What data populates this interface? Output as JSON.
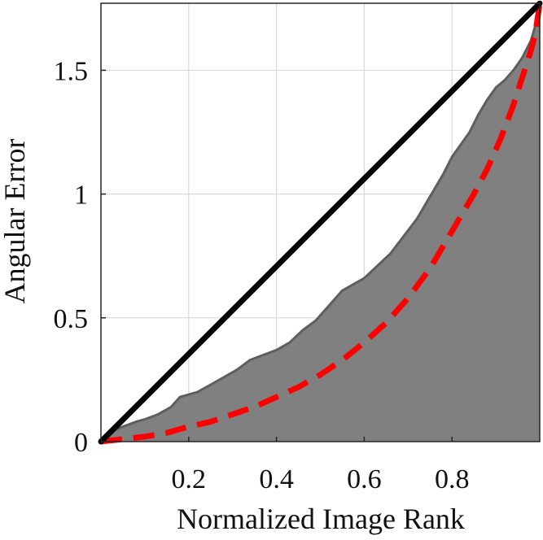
{
  "chart_data": {
    "type": "area",
    "title": "",
    "xlabel": "Normalized Image Rank",
    "ylabel": "Angular Error",
    "xlim": [
      0,
      1
    ],
    "ylim": [
      0,
      1.7708
    ],
    "xticks": [
      0.2,
      0.4,
      0.6,
      0.8
    ],
    "xtick_labels": [
      "0.2",
      "0.4",
      "0.6",
      "0.8"
    ],
    "yticks": [
      0,
      0.5,
      1,
      1.5
    ],
    "ytick_labels": [
      "0",
      "0.5",
      "1",
      "1.5"
    ],
    "grid": true,
    "legend": "none",
    "series": [
      {
        "style": "filled-area",
        "color": "#808080",
        "x": [
          0,
          0.02,
          0.05,
          0.08,
          0.1,
          0.13,
          0.16,
          0.18,
          0.22,
          0.25,
          0.28,
          0.31,
          0.34,
          0.37,
          0.4,
          0.43,
          0.46,
          0.49,
          0.52,
          0.55,
          0.58,
          0.6,
          0.63,
          0.66,
          0.69,
          0.72,
          0.75,
          0.78,
          0.8,
          0.82,
          0.84,
          0.86,
          0.88,
          0.9,
          0.92,
          0.94,
          0.96,
          0.98,
          0.99,
          1.0
        ],
        "y": [
          0,
          0.04,
          0.06,
          0.08,
          0.09,
          0.11,
          0.14,
          0.18,
          0.2,
          0.23,
          0.26,
          0.29,
          0.33,
          0.35,
          0.37,
          0.4,
          0.45,
          0.49,
          0.55,
          0.61,
          0.64,
          0.66,
          0.71,
          0.76,
          0.83,
          0.9,
          0.99,
          1.08,
          1.15,
          1.2,
          1.25,
          1.32,
          1.38,
          1.43,
          1.46,
          1.5,
          1.55,
          1.62,
          1.68,
          1.77
        ]
      },
      {
        "style": "dashed",
        "color": "#ff0000",
        "x": [
          0,
          0.05,
          0.1,
          0.15,
          0.2,
          0.25,
          0.3,
          0.35,
          0.4,
          0.45,
          0.5,
          0.55,
          0.6,
          0.65,
          0.7,
          0.75,
          0.8,
          0.85,
          0.88,
          0.91,
          0.94,
          0.96,
          0.98,
          0.99,
          1.0
        ],
        "y": [
          0,
          0.01,
          0.02,
          0.035,
          0.06,
          0.08,
          0.11,
          0.14,
          0.18,
          0.22,
          0.27,
          0.33,
          0.4,
          0.48,
          0.58,
          0.7,
          0.85,
          1.0,
          1.1,
          1.22,
          1.36,
          1.47,
          1.58,
          1.65,
          1.77
        ]
      },
      {
        "style": "solid",
        "color": "#000000",
        "x": [
          0,
          1
        ],
        "y": [
          0,
          1.77
        ]
      }
    ]
  }
}
